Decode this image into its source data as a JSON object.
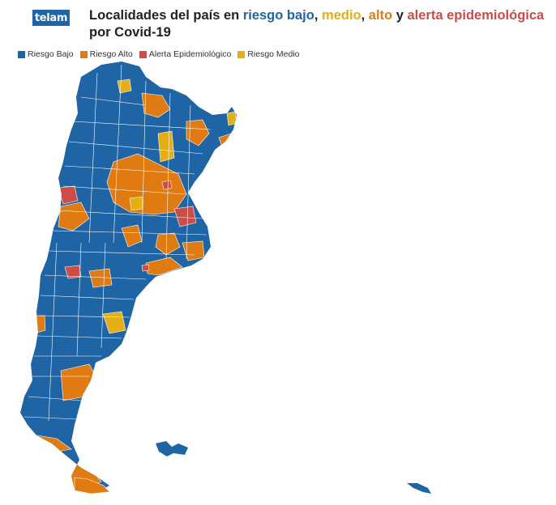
{
  "logo": "telam",
  "title": {
    "prefix": "Localidades del país en ",
    "bajo": "riesgo bajo",
    "sep1": ", ",
    "medio": "medio",
    "sep2": ", ",
    "alto": "alto",
    "sep3": " y ",
    "alerta": "alerta epidemiológica",
    "suffix": " por Covid-19"
  },
  "legend": [
    {
      "label": "Riesgo Bajo",
      "color": "#1f65a6"
    },
    {
      "label": "Riesgo Alto",
      "color": "#e07b12"
    },
    {
      "label": "Alerta Epidemiológico",
      "color": "#cc4c47"
    },
    {
      "label": "Riesgo Medio",
      "color": "#e4ae14"
    }
  ],
  "colors": {
    "bajo": "#1f65a6",
    "alto": "#e07b12",
    "alerta": "#cc4c47",
    "medio": "#e4ae14",
    "border": "#ffffff"
  }
}
